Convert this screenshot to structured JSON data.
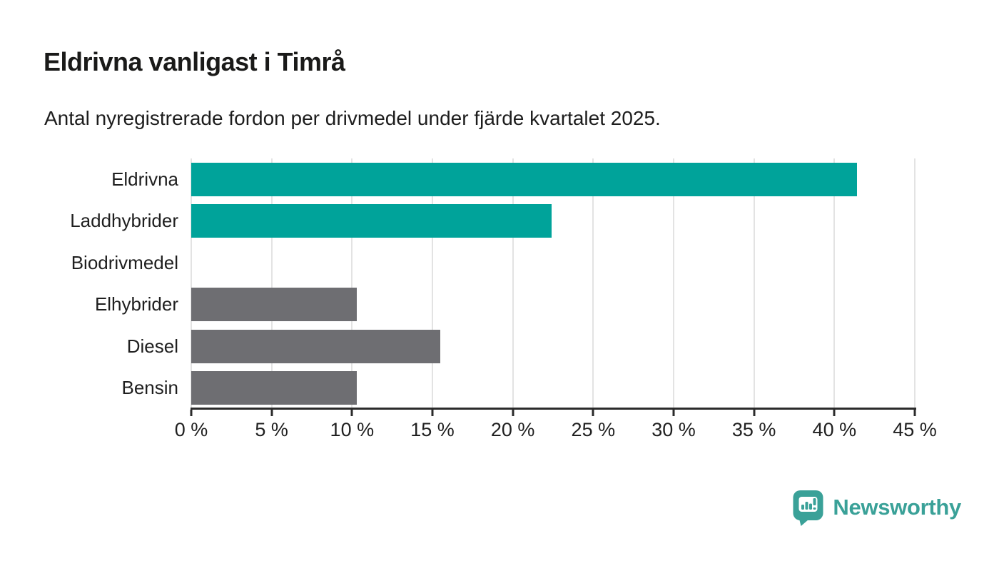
{
  "header": {
    "title": "Eldrivna vanligast i Timrå",
    "subtitle": "Antal nyregistrerade fordon per drivmedel under fjärde kvartalet 2025."
  },
  "chart_data": {
    "type": "bar",
    "orientation": "horizontal",
    "title": "Eldrivna vanligast i Timrå",
    "subtitle": "Antal nyregistrerade fordon per drivmedel under fjärde kvartalet 2025.",
    "categories": [
      "Eldrivna",
      "Laddhybrider",
      "Biodrivmedel",
      "Elhybrider",
      "Diesel",
      "Bensin"
    ],
    "values": [
      41.4,
      22.4,
      0,
      10.3,
      15.5,
      10.3
    ],
    "unit": "%",
    "xlabel": "",
    "ylabel": "",
    "xlim": [
      0,
      45
    ],
    "x_ticks": [
      0,
      5,
      10,
      15,
      20,
      25,
      30,
      35,
      40,
      45
    ],
    "x_tick_labels": [
      "0 %",
      "5 %",
      "10 %",
      "15 %",
      "20 %",
      "25 %",
      "30 %",
      "35 %",
      "40 %",
      "45 %"
    ],
    "bar_colors": [
      "#00a39a",
      "#00a39a",
      "#6e6e72",
      "#6e6e72",
      "#6e6e72",
      "#6e6e72"
    ],
    "grid": true,
    "legend": "none"
  },
  "colors": {
    "accent_teal": "#00a39a",
    "neutral_gray": "#6e6e72",
    "gridline": "#e3e3e3",
    "axis": "#2b2b2b",
    "text": "#1d1d1d",
    "logo_teal": "#3aa198"
  },
  "footer": {
    "brand": "Newsworthy"
  }
}
